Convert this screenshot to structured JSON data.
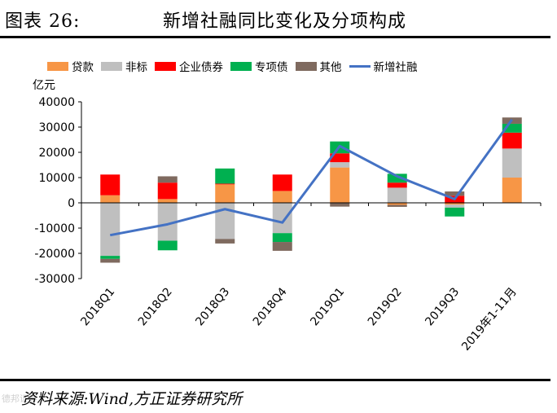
{
  "header": {
    "figure_label": "图表 26:",
    "title": "新增社融同比变化及分项构成"
  },
  "footer": {
    "source": "资料来源:Wind,方正证券研究所",
    "watermark": "德邦证券"
  },
  "chart_data": {
    "type": "bar",
    "stacked": true,
    "title": "新增社融同比变化及分项构成",
    "unit_label": "亿元",
    "xlabel": "",
    "ylabel": "亿元",
    "ylim": [
      -30000,
      40000
    ],
    "yticks": [
      40000,
      30000,
      20000,
      10000,
      0,
      -10000,
      -20000,
      -30000
    ],
    "legend_position": "top",
    "categories": [
      "2018Q1",
      "2018Q2",
      "2018Q3",
      "2018Q4",
      "2019Q1",
      "2019Q2",
      "2019Q3",
      "2019年1-11月"
    ],
    "series": [
      {
        "name": "贷款",
        "color": "#F79646",
        "values": [
          3000,
          1500,
          7300,
          4700,
          14000,
          -800,
          -700,
          10000
        ]
      },
      {
        "name": "非标",
        "color": "#BFBFBF",
        "values": [
          -21000,
          -15000,
          -14300,
          -12000,
          2100,
          6000,
          -1200,
          11500
        ]
      },
      {
        "name": "企业债券",
        "color": "#FF0000",
        "values": [
          8200,
          6500,
          300,
          6500,
          3500,
          2000,
          2800,
          6300
        ]
      },
      {
        "name": "专项债",
        "color": "#00B050",
        "values": [
          -1200,
          -3800,
          6000,
          -3500,
          4700,
          3500,
          -3500,
          3500
        ]
      },
      {
        "name": "其他",
        "color": "#7F6A5F",
        "values": [
          -1500,
          2500,
          -1800,
          -3500,
          -1500,
          -800,
          1700,
          2500
        ]
      }
    ],
    "line": {
      "name": "新增社融",
      "color": "#4472C4",
      "values": [
        -12800,
        -8500,
        -2500,
        -7800,
        22500,
        10500,
        1500,
        33000
      ]
    }
  }
}
